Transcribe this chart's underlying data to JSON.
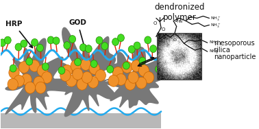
{
  "background_color": "#ffffff",
  "fig_width": 3.78,
  "fig_height": 1.88,
  "dpi": 100,
  "floor_color": "#b8b8b8",
  "nanoparticle_color": "#787878",
  "orange_ball_color": "#f0922b",
  "orange_ball_edge": "#cc6600",
  "green_ball_color": "#44dd22",
  "green_ball_edge": "#228800",
  "blue_wave_color": "#22aaee",
  "red_stick_color": "#dd2200",
  "text_color": "#111111",
  "label_hrp": "HRP",
  "label_god": "GOD",
  "label_dendronized": "dendronized\npolymer",
  "label_meso1": "mesoporous",
  "label_meso2": "silica",
  "label_meso3": "nanoparticle"
}
